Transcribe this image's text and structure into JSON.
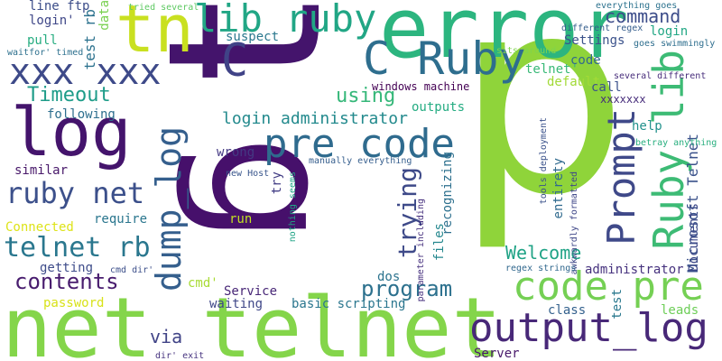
{
  "cloud": {
    "words": [
      {
        "text": "p",
        "color": "#8fd43a"
      },
      {
        "text": "t",
        "color": "#44146c"
      },
      {
        "text": "g",
        "color": "#46106b"
      },
      {
        "text": "error",
        "color": "#2cb57f"
      },
      {
        "text": "net telnet",
        "color": "#84d54a"
      },
      {
        "text": "tn",
        "color": "#c9e020"
      },
      {
        "text": "log",
        "color": "#44146c"
      },
      {
        "text": "lib ruby",
        "color": "#21a685"
      },
      {
        "text": "C Ruby",
        "color": "#2e6e8e"
      },
      {
        "text": "xxx xxx",
        "color": "#3e4a89"
      },
      {
        "text": "C",
        "color": "#404387"
      },
      {
        "text": "pre code",
        "color": "#2f6b8e"
      },
      {
        "text": "Ruby lib",
        "color": "#3dbb75"
      },
      {
        "text": "Prompt",
        "color": "#3f4989"
      },
      {
        "text": "dump_log",
        "color": "#355f8d"
      },
      {
        "text": "code pre",
        "color": "#75d054"
      },
      {
        "text": "output_log",
        "color": "#482878"
      },
      {
        "text": "ruby net",
        "color": "#3c508b"
      },
      {
        "text": "telnet rb",
        "color": "#2a778e"
      },
      {
        "text": "contents",
        "color": "#481c6e"
      },
      {
        "text": "program",
        "color": "#2d718e"
      },
      {
        "text": "trying",
        "color": "#3e4a89"
      },
      {
        "text": "Welcome",
        "color": "#20a386"
      },
      {
        "text": "Timeout",
        "color": "#1e9c89"
      },
      {
        "text": "login administrator",
        "color": "#238a8d"
      },
      {
        "text": "using",
        "color": "#35b779"
      },
      {
        "text": "command",
        "color": "#3d4d8a"
      },
      {
        "text": "via",
        "color": "#414487"
      },
      {
        "text": "test rb",
        "color": "#2c728e"
      },
      {
        "text": "Microsoft Telnet",
        "color": "#3b528b"
      },
      {
        "text": "Settings",
        "color": "#3b528b"
      },
      {
        "text": "suspect",
        "color": "#2a788e"
      },
      {
        "text": "windows machine",
        "color": "#440154"
      },
      {
        "text": "telnet'",
        "color": "#38b977"
      },
      {
        "text": "code",
        "color": "#31688e"
      },
      {
        "text": "default",
        "color": "#a2da37"
      },
      {
        "text": "outputs",
        "color": "#25ac82"
      },
      {
        "text": "call",
        "color": "#3b518b"
      },
      {
        "text": "xxxxxxx",
        "color": "#472d7b"
      },
      {
        "text": "help",
        "color": "#21918c"
      },
      {
        "text": "wrong",
        "color": "#443983"
      },
      {
        "text": "following",
        "color": "#2e6f8e"
      },
      {
        "text": "similar",
        "color": "#48186a"
      },
      {
        "text": "Connected",
        "color": "#dde318"
      },
      {
        "text": "require",
        "color": "#2a768e"
      },
      {
        "text": "getting",
        "color": "#3e4c8a"
      },
      {
        "text": "password",
        "color": "#d8e219"
      },
      {
        "text": "cmd'",
        "color": "#a8db34"
      },
      {
        "text": "Service",
        "color": "#482777"
      },
      {
        "text": "waiting",
        "color": "#3f4788"
      },
      {
        "text": "basic scripting",
        "color": "#2a768e"
      },
      {
        "text": "run",
        "color": "#c2df23"
      },
      {
        "text": "try",
        "color": "#433e85"
      },
      {
        "text": "dos",
        "color": "#2c738e"
      },
      {
        "text": "files",
        "color": "#24878e"
      },
      {
        "text": "recognizing",
        "color": "#2d708e"
      },
      {
        "text": "entirety",
        "color": "#306a8e"
      },
      {
        "text": "Documents",
        "color": "#3e4989"
      },
      {
        "text": "administrator",
        "color": "#46327e"
      },
      {
        "text": "class",
        "color": "#34618d"
      },
      {
        "text": "test",
        "color": "#2a788e"
      },
      {
        "text": "leads",
        "color": "#6ece58"
      },
      {
        "text": "Server",
        "color": "#48186a"
      },
      {
        "text": "line ftp",
        "color": "#3d4e8a"
      },
      {
        "text": "login'",
        "color": "#3f4788"
      },
      {
        "text": "pull",
        "color": "#27ad81"
      },
      {
        "text": "data",
        "color": "#7ad151"
      },
      {
        "text": "waitfor' timed",
        "color": "#2d708e"
      },
      {
        "text": "tried several",
        "color": "#5ec962"
      },
      {
        "text": "everything goes",
        "color": "#2c728e"
      },
      {
        "text": "different regex",
        "color": "#355e8d"
      },
      {
        "text": "login",
        "color": "#22a785"
      },
      {
        "text": "goes swimmingly",
        "color": "#2e6e8e"
      },
      {
        "text": "sits around",
        "color": "#7fd34e"
      },
      {
        "text": "several different",
        "color": "#472d7b"
      },
      {
        "text": "manually everything",
        "color": "#355e8d"
      },
      {
        "text": "new Host",
        "color": "#39568c"
      },
      {
        "text": "nothing seems",
        "color": "#20a486"
      },
      {
        "text": "parameter including",
        "color": "#46307e"
      },
      {
        "text": "tools deployment",
        "color": "#3b528b"
      },
      {
        "text": "awkwardly formatted",
        "color": "#3f4788"
      },
      {
        "text": "betray anything",
        "color": "#29af7f"
      },
      {
        "text": "cmd dir'",
        "color": "#3c4f8a"
      },
      {
        "text": "regex strings",
        "color": "#31688e"
      },
      {
        "text": "dir' exit",
        "color": "#46337f"
      }
    ]
  }
}
